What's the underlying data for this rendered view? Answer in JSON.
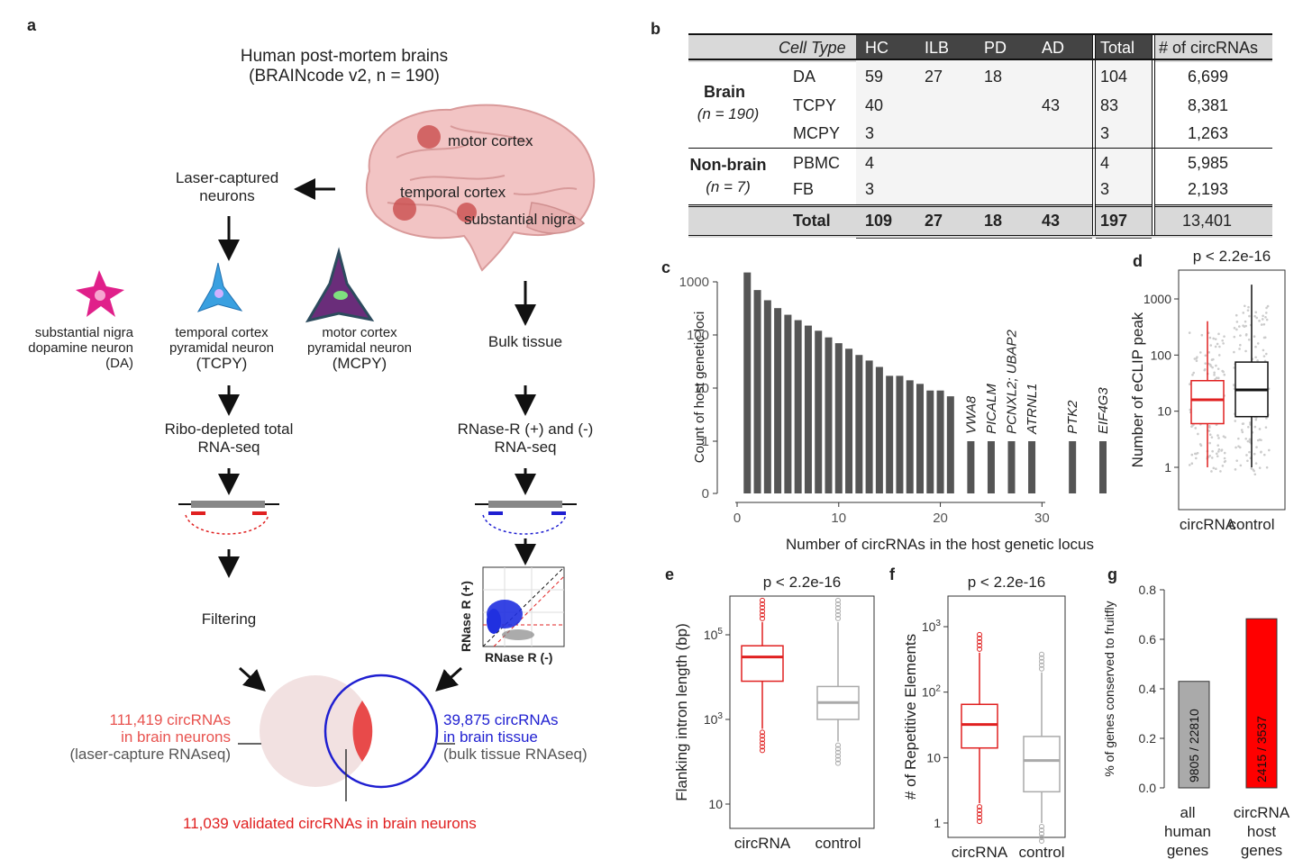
{
  "panel_a": {
    "letter": "a",
    "title_line1": "Human post-mortem brains",
    "title_line2": "(BRAINcode v2, n = 190)",
    "region_motor": "motor cortex",
    "region_temporal": "temporal cortex",
    "region_nigra": "substantial nigra",
    "laser_line1": "Laser-captured",
    "laser_line2": "neurons",
    "neuron_da_line1": "substantial nigra",
    "neuron_da_line2": "dopamine neuron",
    "neuron_da_line3": "(DA)",
    "neuron_tcpy_line1": "temporal cortex",
    "neuron_tcpy_line2": "pyramidal neuron",
    "neuron_tcpy_line3": "(TCPY)",
    "neuron_mcpy_line1": "motor cortex",
    "neuron_mcpy_line2": "pyramidal neuron",
    "neuron_mcpy_line3": "(MCPY)",
    "bulk_tissue": "Bulk tissue",
    "ribo_line1": "Ribo-depleted total",
    "ribo_line2": "RNA-seq",
    "rnase_line1": "RNase-R (+) and (-)",
    "rnase_line2": "RNA-seq",
    "filtering": "Filtering",
    "scatter_ylabel": "RNase R (+)",
    "scatter_xlabel": "RNase R (-)",
    "left_count_line1": "111,419 circRNAs",
    "left_count_line2": "in brain neurons",
    "left_count_line3": "(laser-capture RNAseq)",
    "right_count_line1": "39,875 circRNAs",
    "right_count_line2": "in brain tissue",
    "right_count_line3": "(bulk tissue RNAseq)",
    "validated": "11,039 validated circRNAs in brain neurons",
    "colors": {
      "red": "#e8534f",
      "blue": "#1f1fd1",
      "pink": "#f2e1e1",
      "neuron_da": "#e0208a",
      "neuron_tcpy": "#3aa0e0",
      "neuron_mcpy": "#2d4b5e"
    }
  },
  "panel_b": {
    "letter": "b",
    "headers": [
      "Cell Type",
      "HC",
      "ILB",
      "PD",
      "AD",
      "Total",
      "# of circRNAs"
    ],
    "group_brain": "Brain",
    "group_brain_n": "(n = 190)",
    "group_nonbrain": "Non-brain",
    "group_nonbrain_n": "(n = 7)",
    "rows": [
      {
        "cell": "DA",
        "hc": "59",
        "ilb": "27",
        "pd": "18",
        "ad": "",
        "total": "104",
        "circ": "6,699"
      },
      {
        "cell": "TCPY",
        "hc": "40",
        "ilb": "",
        "pd": "",
        "ad": "43",
        "total": "83",
        "circ": "8,381"
      },
      {
        "cell": "MCPY",
        "hc": "3",
        "ilb": "",
        "pd": "",
        "ad": "",
        "total": "3",
        "circ": "1,263"
      },
      {
        "cell": "PBMC",
        "hc": "4",
        "ilb": "",
        "pd": "",
        "ad": "",
        "total": "4",
        "circ": "5,985"
      },
      {
        "cell": "FB",
        "hc": "3",
        "ilb": "",
        "pd": "",
        "ad": "",
        "total": "3",
        "circ": "2,193"
      }
    ],
    "total_row": {
      "label": "Total",
      "hc": "109",
      "ilb": "27",
      "pd": "18",
      "ad": "43",
      "total": "197",
      "circ": "13,401"
    }
  },
  "chart_data": [
    {
      "panel": "c",
      "type": "bar",
      "xlabel": "Number of circRNAs in the host genetic locus",
      "ylabel": "Count of host genetic loci",
      "yscale": "log",
      "xlim": [
        0,
        36
      ],
      "xticks": [
        "0",
        "10",
        "20",
        "30"
      ],
      "yticks": [
        "0",
        "1",
        "10",
        "100",
        "1000"
      ],
      "x": [
        1,
        2,
        3,
        4,
        5,
        6,
        7,
        8,
        9,
        10,
        11,
        12,
        13,
        14,
        15,
        16,
        17,
        18,
        19,
        20,
        21,
        23,
        25,
        27,
        29,
        33,
        36
      ],
      "values": [
        1500,
        700,
        450,
        320,
        240,
        190,
        150,
        120,
        90,
        70,
        55,
        42,
        33,
        25,
        17,
        17,
        14,
        12,
        9,
        9,
        7,
        1,
        1,
        1,
        1,
        1,
        1
      ],
      "gene_labels": [
        {
          "x": 23,
          "text": "VWA8"
        },
        {
          "x": 25,
          "text": "PICALM"
        },
        {
          "x": 27,
          "text": "PCNXL2; UBAP2"
        },
        {
          "x": 29,
          "text": "ATRNL1"
        },
        {
          "x": 33,
          "text": "PTK2"
        },
        {
          "x": 36,
          "text": "EIF4G3"
        }
      ],
      "bar_color": "#555555"
    },
    {
      "panel": "d",
      "type": "box",
      "title": "p < 2.2e-16",
      "ylabel": "Number of eCLIP peak",
      "yscale": "log",
      "yticks": [
        "1",
        "10",
        "100",
        "1000"
      ],
      "categories": [
        "circRNA",
        "control"
      ],
      "boxes": [
        {
          "name": "circRNA",
          "min": 1,
          "q1": 6,
          "median": 16,
          "q3": 35,
          "max": 400,
          "color": "#e02020"
        },
        {
          "name": "control",
          "min": 1,
          "q1": 8,
          "median": 24,
          "q3": 75,
          "max": 1800,
          "color": "#111111"
        }
      ]
    },
    {
      "panel": "e",
      "type": "box",
      "title": "p < 2.2e-16",
      "ylabel": "Flanking intron length (bp)",
      "yscale": "log",
      "yticks": [
        "10",
        "10^3",
        "10^5"
      ],
      "categories": [
        "circRNA",
        "control"
      ],
      "boxes": [
        {
          "name": "circRNA",
          "min": 600,
          "q1": 8000,
          "median": 30000,
          "q3": 55000,
          "max": 200000,
          "color": "#e02020"
        },
        {
          "name": "control",
          "min": 300,
          "q1": 1000,
          "median": 2500,
          "q3": 6000,
          "max": 200000,
          "color": "#aaaaaa"
        }
      ]
    },
    {
      "panel": "f",
      "type": "box",
      "title": "p < 2.2e-16",
      "ylabel": "# of Repetitive Elements",
      "yscale": "log",
      "yticks": [
        "1",
        "10",
        "10^2",
        "10^3"
      ],
      "categories": [
        "circRNA",
        "control"
      ],
      "boxes": [
        {
          "name": "circRNA",
          "min": 2,
          "q1": 14,
          "median": 32,
          "q3": 65,
          "max": 400,
          "color": "#e02020"
        },
        {
          "name": "control",
          "min": 1,
          "q1": 3,
          "median": 9,
          "q3": 21,
          "max": 200,
          "color": "#aaaaaa"
        }
      ]
    },
    {
      "panel": "g",
      "type": "bar",
      "ylabel": "% of genes conserved to fruitfly",
      "ylim": [
        0,
        0.8
      ],
      "yticks": [
        "0.0",
        "0.2",
        "0.4",
        "0.6",
        "0.8"
      ],
      "categories": [
        "all human genes",
        "circRNA host genes"
      ],
      "values": [
        0.43,
        0.683
      ],
      "bar_labels": [
        "9805 / 22810",
        "2415 / 3537"
      ],
      "colors": [
        "#aaaaaa",
        "#ff0000"
      ]
    }
  ],
  "panel_c_letter": "c",
  "panel_d_letter": "d",
  "panel_e_letter": "e",
  "panel_f_letter": "f",
  "panel_g_letter": "g",
  "panel_g_cat1_line1": "all",
  "panel_g_cat1_line2": "human",
  "panel_g_cat1_line3": "genes",
  "panel_g_cat2_line1": "circRNA",
  "panel_g_cat2_line2": "host",
  "panel_g_cat2_line3": "genes"
}
